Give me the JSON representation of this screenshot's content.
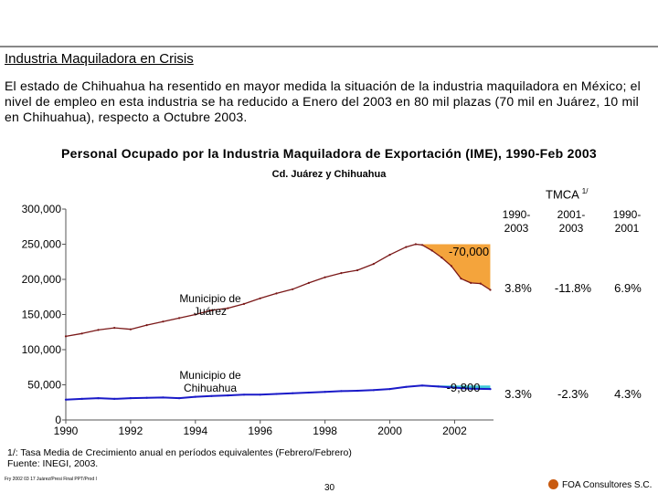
{
  "header": {
    "title": "Industria Maquiladora en Crisis",
    "paragraph": "El estado de Chihuahua ha resentido en mayor medida la situación de la industria maquiladora en México; el nivel de empleo en esta industria se ha reducido a Enero del 2003 en 80 mil plazas (70 mil en Juárez, 10 mil en Chihuahua), respecto a Octubre 2003."
  },
  "chart_data": {
    "type": "line",
    "title": "Personal Ocupado por la Industria Maquiladora de Exportación (IME), 1990-Feb 2003",
    "subtitle": "Cd. Juárez y Chihuahua",
    "xlim": [
      1990,
      2003.2
    ],
    "ylim": [
      0,
      300000
    ],
    "x_ticks": [
      "1990",
      "1992",
      "1994",
      "1996",
      "1998",
      "2000",
      "2002"
    ],
    "y_ticks": [
      "0",
      "50,000",
      "100,000",
      "150,000",
      "200,000",
      "250,000",
      "300,000"
    ],
    "series": [
      {
        "name": "Municipio de Juárez",
        "color": "#7a1818",
        "x": [
          1990,
          1990.5,
          1991,
          1991.5,
          1992,
          1992.5,
          1993,
          1993.5,
          1994,
          1994.5,
          1995,
          1995.5,
          1996,
          1996.5,
          1997,
          1997.5,
          1998,
          1998.5,
          1999,
          1999.5,
          2000,
          2000.5,
          2000.8,
          2001,
          2001.3,
          2001.6,
          2001.9,
          2002.2,
          2002.5,
          2002.8,
          2003.1
        ],
        "y": [
          119000,
          123000,
          128000,
          131000,
          129000,
          135000,
          140000,
          145000,
          150000,
          156000,
          159000,
          165000,
          173000,
          180000,
          186000,
          195000,
          203000,
          209000,
          213000,
          222000,
          235000,
          246000,
          250000,
          249000,
          241000,
          231000,
          219000,
          201000,
          195000,
          194000,
          185000
        ]
      },
      {
        "name": "Municipio de Chihuahua",
        "color": "#1a1ac8",
        "x": [
          1990,
          1990.5,
          1991,
          1991.5,
          1992,
          1992.5,
          1993,
          1993.5,
          1994,
          1994.5,
          1995,
          1995.5,
          1996,
          1996.5,
          1997,
          1997.5,
          1998,
          1998.5,
          1999,
          1999.5,
          2000,
          2000.5,
          2001,
          2001.5,
          2002,
          2002.5,
          2003.1
        ],
        "y": [
          29000,
          30000,
          31000,
          30000,
          31000,
          31500,
          32000,
          31000,
          33000,
          34000,
          35000,
          36000,
          36000,
          37000,
          38000,
          39000,
          40000,
          41000,
          41500,
          42500,
          44000,
          47000,
          49000,
          47500,
          46000,
          44500,
          44000
        ]
      }
    ],
    "annotations": {
      "juarez_label": "Municipio de Juárez",
      "chihuahua_label": "Municipio de Chihuahua",
      "juarez_drop": "-70,000",
      "chihuahua_drop": "-9,800"
    },
    "shade_color": "#f4a43c",
    "shade_color_2": "#40c8d8",
    "table": {
      "title": "TMCA",
      "title_sup": "1/",
      "columns": [
        "1990-\n2003",
        "2001-\n2003",
        "1990-\n2001"
      ],
      "rows": [
        [
          "3.8%",
          "-11.8%",
          "6.9%"
        ],
        [
          "3.3%",
          "-2.3%",
          "4.3%"
        ]
      ]
    }
  },
  "footer": {
    "note1": "1/: Tasa Media de Crecimiento anual en períodos equivalentes (Febrero/Febrero)",
    "note2": "Fuente: INEGI, 2003.",
    "file": "Fry 2002 03 17 Juárez/Presi Final PPT/Prod I",
    "page": "30",
    "company": "FOA Consultores S.C."
  }
}
